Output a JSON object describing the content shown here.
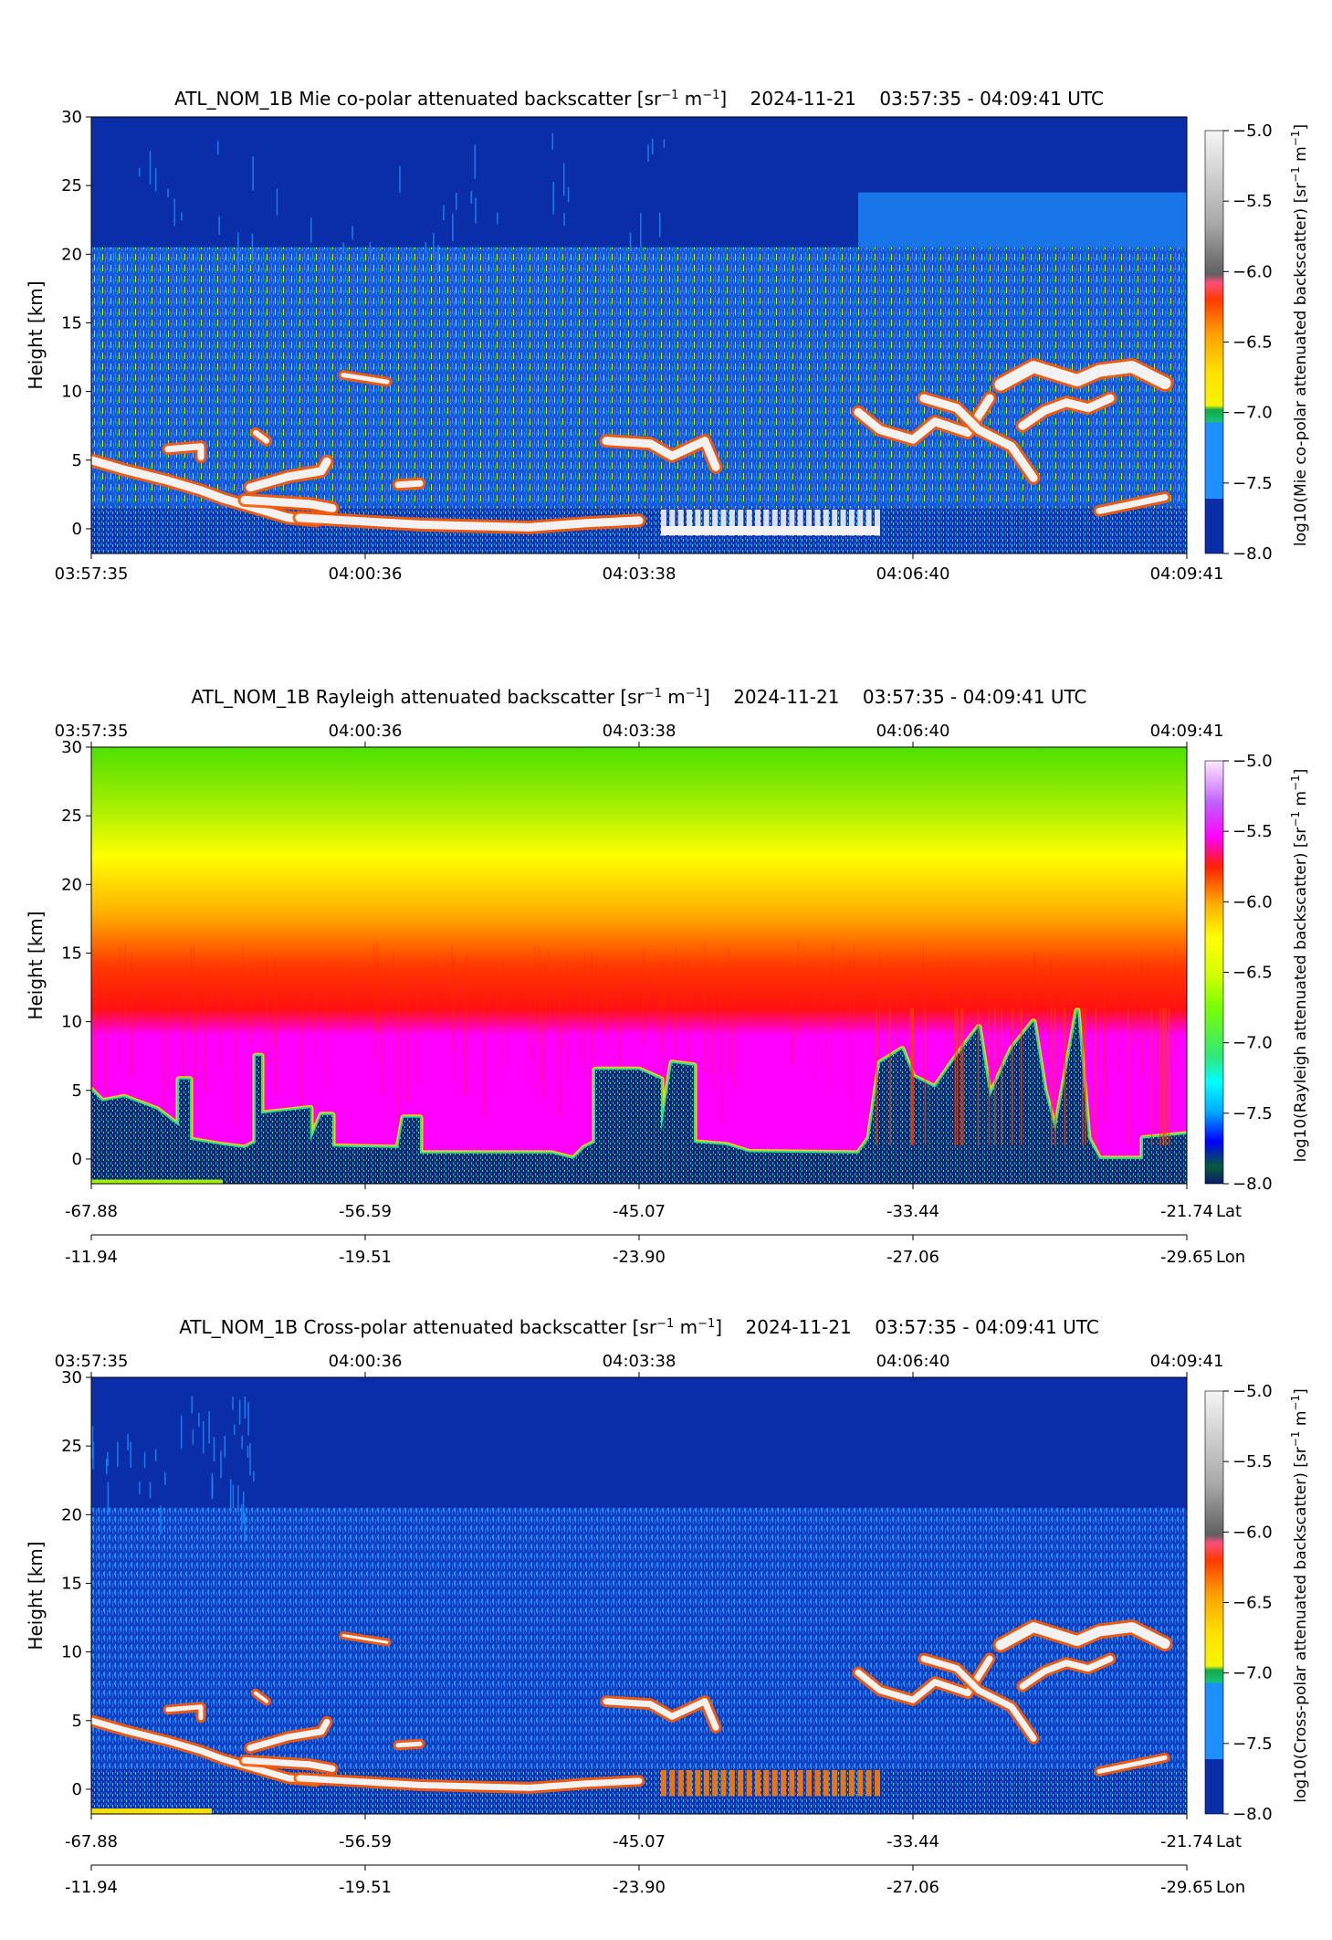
{
  "panels": [
    {
      "id": "mie",
      "title": {
        "product": "ATL_NOM_1B",
        "name": "Mie co-polar attenuated backscatter",
        "unit_open": "[sr",
        "unit_exp1": "−1",
        "unit_mid": " m",
        "unit_exp2": "−1",
        "unit_close": "]",
        "date": "2024-11-21",
        "time_range": "03:57:35 - 04:09:41 UTC"
      },
      "ylabel": "Height [km]",
      "colorbar_label": {
        "prefix": "log10(Mie co-polar attenuated backscatter) [sr",
        "exp1": "−1",
        "mid": " m",
        "exp2": "−1",
        "close": "]"
      },
      "colormap": "mie"
    },
    {
      "id": "rayleigh",
      "title": {
        "product": "ATL_NOM_1B",
        "name": "Rayleigh attenuated backscatter",
        "unit_open": "[sr",
        "unit_exp1": "−1",
        "unit_mid": " m",
        "unit_exp2": "−1",
        "unit_close": "]",
        "date": "2024-11-21",
        "time_range": "03:57:35 - 04:09:41 UTC"
      },
      "ylabel": "Height [km]",
      "colorbar_label": {
        "prefix": "log10(Rayleigh attenuated backscatter) [sr",
        "exp1": "−1",
        "mid": " m",
        "exp2": "−1",
        "close": "]"
      },
      "colormap": "rayleigh"
    },
    {
      "id": "cross",
      "title": {
        "product": "ATL_NOM_1B",
        "name": "Cross-polar attenuated backscatter",
        "unit_open": "[sr",
        "unit_exp1": "−1",
        "unit_mid": " m",
        "unit_exp2": "−1",
        "unit_close": "]",
        "date": "2024-11-21",
        "time_range": "03:57:35 - 04:09:41 UTC"
      },
      "ylabel": "Height [km]",
      "colorbar_label": {
        "prefix": "log10(Cross-polar attenuated backscatter) [sr",
        "exp1": "−1",
        "mid": " m",
        "exp2": "−1",
        "close": "]"
      },
      "colormap": "mie"
    }
  ],
  "time_ticks": [
    "03:57:35",
    "04:00:36",
    "04:03:38",
    "04:06:40",
    "04:09:41"
  ],
  "lat_ticks": [
    "-67.88",
    "-56.59",
    "-45.07",
    "-33.44",
    "-21.74"
  ],
  "lon_ticks": [
    "-11.94",
    "-19.51",
    "-23.90",
    "-27.06",
    "-29.65"
  ],
  "lat_label": "Lat",
  "lon_label": "Lon",
  "height_ticks": [
    "30",
    "25",
    "20",
    "15",
    "10",
    "5",
    "0"
  ],
  "colorbar_ticks": [
    "−5.0",
    "−5.5",
    "−6.0",
    "−6.5",
    "−7.0",
    "−7.5",
    "−8.0"
  ],
  "chart_data": [
    {
      "type": "heatmap",
      "title": "ATL_NOM_1B Mie co-polar attenuated backscatter [sr−1 m−1]    2024-11-21    03:57:35 - 04:09:41 UTC",
      "xlabel": "",
      "ylabel": "Height [km]",
      "x_ticks": [
        "03:57:35",
        "04:00:36",
        "04:03:38",
        "04:06:40",
        "04:09:41"
      ],
      "ylim": [
        -1.8,
        30
      ],
      "y_ticks": [
        0,
        5,
        10,
        15,
        20,
        25,
        30
      ],
      "colorbar": {
        "label": "log10(Mie co-polar attenuated backscatter) [sr−1 m−1]",
        "range": [
          -8.0,
          -5.0
        ],
        "ticks": [
          -5.0,
          -5.5,
          -6.0,
          -6.5,
          -7.0,
          -7.5,
          -8.0
        ]
      },
      "features": [
        {
          "kind": "cloud",
          "time_start_frac": 0.0,
          "time_end_frac": 0.21,
          "height_km": [
            1,
            6
          ]
        },
        {
          "kind": "cloud",
          "time_start_frac": 0.14,
          "time_end_frac": 0.46,
          "height_km": [
            0,
            4
          ]
        },
        {
          "kind": "cloud",
          "time_start_frac": 0.45,
          "time_end_frac": 0.57,
          "height_km": [
            3,
            7
          ]
        },
        {
          "kind": "cloud",
          "time_start_frac": 0.5,
          "time_end_frac": 0.72,
          "height_km": [
            0,
            2
          ]
        },
        {
          "kind": "cloud",
          "time_start_frac": 0.7,
          "time_end_frac": 0.98,
          "height_km": [
            2,
            13
          ]
        }
      ]
    },
    {
      "type": "heatmap",
      "title": "ATL_NOM_1B Rayleigh attenuated backscatter [sr−1 m−1]    2024-11-21    03:57:35 - 04:09:41 UTC",
      "xlabel": "",
      "ylabel": "Height [km]",
      "x_ticks": [
        "03:57:35",
        "04:00:36",
        "04:03:38",
        "04:06:40",
        "04:09:41"
      ],
      "x2_ticks_lat": [
        "-67.88",
        "-56.59",
        "-45.07",
        "-33.44",
        "-21.74"
      ],
      "x3_ticks_lon": [
        "-11.94",
        "-19.51",
        "-23.90",
        "-27.06",
        "-29.65"
      ],
      "ylim": [
        -1.8,
        30
      ],
      "y_ticks": [
        0,
        5,
        10,
        15,
        20,
        25,
        30
      ],
      "colorbar": {
        "label": "log10(Rayleigh attenuated backscatter) [sr−1 m−1]",
        "range": [
          -8.0,
          -5.0
        ],
        "ticks": [
          -5.0,
          -5.5,
          -6.0,
          -6.5,
          -7.0,
          -7.5,
          -8.0
        ]
      },
      "features": [
        {
          "kind": "vertical_gradient",
          "height_km": 28,
          "log10_value": -6.9
        },
        {
          "kind": "vertical_gradient",
          "height_km": 20,
          "log10_value": -6.5
        },
        {
          "kind": "vertical_gradient",
          "height_km": 12,
          "log10_value": -6.0
        },
        {
          "kind": "vertical_gradient",
          "height_km": 5,
          "log10_value": -5.7
        }
      ]
    },
    {
      "type": "heatmap",
      "title": "ATL_NOM_1B Cross-polar attenuated backscatter [sr−1 m−1]    2024-11-21    03:57:35 - 04:09:41 UTC",
      "xlabel": "",
      "ylabel": "Height [km]",
      "x_ticks": [
        "03:57:35",
        "04:00:36",
        "04:03:38",
        "04:06:40",
        "04:09:41"
      ],
      "x2_ticks_lat": [
        "-67.88",
        "-56.59",
        "-45.07",
        "-33.44",
        "-21.74"
      ],
      "x3_ticks_lon": [
        "-11.94",
        "-19.51",
        "-23.90",
        "-27.06",
        "-29.65"
      ],
      "ylim": [
        -1.8,
        30
      ],
      "y_ticks": [
        0,
        5,
        10,
        15,
        20,
        25,
        30
      ],
      "colorbar": {
        "label": "log10(Cross-polar attenuated backscatter) [sr−1 m−1]",
        "range": [
          -8.0,
          -5.0
        ],
        "ticks": [
          -5.0,
          -5.5,
          -6.0,
          -6.5,
          -7.0,
          -7.5,
          -8.0
        ]
      },
      "features": [
        {
          "kind": "cloud",
          "time_start_frac": 0.0,
          "time_end_frac": 0.21,
          "height_km": [
            1,
            6
          ]
        },
        {
          "kind": "cloud",
          "time_start_frac": 0.14,
          "time_end_frac": 0.46,
          "height_km": [
            0,
            4
          ]
        },
        {
          "kind": "cloud",
          "time_start_frac": 0.45,
          "time_end_frac": 0.57,
          "height_km": [
            3,
            7
          ]
        },
        {
          "kind": "cloud",
          "time_start_frac": 0.5,
          "time_end_frac": 0.72,
          "height_km": [
            0,
            2
          ]
        },
        {
          "kind": "cloud",
          "time_start_frac": 0.7,
          "time_end_frac": 0.98,
          "height_km": [
            2,
            13
          ]
        }
      ]
    }
  ]
}
